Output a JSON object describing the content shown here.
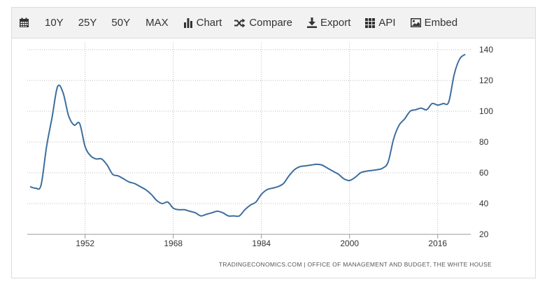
{
  "toolbar": {
    "calendar_icon": "calendar-icon",
    "items": [
      {
        "label": "10Y"
      },
      {
        "label": "25Y"
      },
      {
        "label": "50Y"
      },
      {
        "label": "MAX"
      },
      {
        "label": "Chart",
        "icon": "bar-chart-icon"
      },
      {
        "label": "Compare",
        "icon": "shuffle-icon"
      },
      {
        "label": "Export",
        "icon": "download-icon"
      },
      {
        "label": "API",
        "icon": "grid-icon"
      },
      {
        "label": "Embed",
        "icon": "image-icon"
      }
    ]
  },
  "chart_data": {
    "type": "line",
    "title": "",
    "xlabel": "",
    "ylabel": "",
    "xlim": [
      1941.5,
      2022
    ],
    "ylim": [
      20,
      140
    ],
    "x_ticks": [
      1952,
      1968,
      1984,
      2000,
      2016
    ],
    "y_ticks": [
      20,
      40,
      60,
      80,
      100,
      120,
      140
    ],
    "y_axis_position": "right",
    "grid": "dotted",
    "line_color": "#3d6e9e",
    "series": [
      {
        "x": [
          1942,
          1943,
          1944,
          1945,
          1946,
          1947,
          1948,
          1949,
          1950,
          1951,
          1952,
          1953,
          1954,
          1955,
          1956,
          1957,
          1958,
          1959,
          1960,
          1961,
          1962,
          1963,
          1964,
          1965,
          1966,
          1967,
          1968,
          1969,
          1970,
          1971,
          1972,
          1973,
          1974,
          1975,
          1976,
          1977,
          1978,
          1979,
          1980,
          1981,
          1982,
          1983,
          1984,
          1985,
          1986,
          1987,
          1988,
          1989,
          1990,
          1991,
          1992,
          1993,
          1994,
          1995,
          1996,
          1997,
          1998,
          1999,
          2000,
          2001,
          2002,
          2003,
          2004,
          2005,
          2006,
          2007,
          2008,
          2009,
          2010,
          2011,
          2012,
          2013,
          2014,
          2015,
          2016,
          2017,
          2018,
          2019,
          2020,
          2021
        ],
        "y": [
          51,
          50,
          52,
          77,
          96,
          116,
          112,
          97,
          91,
          92,
          77,
          71,
          69,
          69,
          65,
          59,
          58,
          56,
          54,
          53,
          51,
          49,
          46,
          42,
          40,
          41,
          37,
          36,
          36,
          35,
          34,
          32,
          33,
          34,
          35,
          34,
          32,
          32,
          32,
          36,
          39,
          41,
          46,
          49,
          50,
          51,
          53,
          58,
          62,
          64,
          64.5,
          65,
          65.5,
          65,
          63,
          61,
          59,
          56,
          55,
          57,
          60,
          61,
          61.5,
          62,
          63,
          67,
          82,
          91,
          95,
          100,
          101,
          102,
          101,
          105,
          104,
          105,
          106,
          124,
          134,
          137
        ]
      }
    ],
    "source_text": "TRADINGECONOMICS.COM  |  OFFICE OF MANAGEMENT AND BUDGET, THE WHITE HOUSE"
  }
}
